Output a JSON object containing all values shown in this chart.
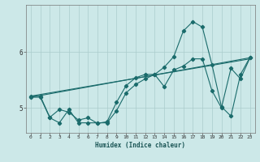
{
  "bg_color": "#cce8e8",
  "grid_color": "#aacccc",
  "line_color": "#1a6b6b",
  "xlabel": "Humidex (Indice chaleur)",
  "xlim": [
    -0.5,
    23.5
  ],
  "ylim": [
    4.55,
    6.85
  ],
  "yticks": [
    5,
    6
  ],
  "xticks": [
    0,
    1,
    2,
    3,
    4,
    5,
    6,
    7,
    8,
    9,
    10,
    11,
    12,
    13,
    14,
    15,
    16,
    17,
    18,
    19,
    20,
    21,
    22,
    23
  ],
  "series1_x": [
    0,
    1,
    2,
    3,
    4,
    5,
    6,
    7,
    8,
    9,
    10,
    11,
    12,
    13,
    14,
    15,
    16,
    17,
    18,
    19,
    20,
    21,
    22,
    23
  ],
  "series1_y": [
    5.19,
    5.19,
    4.82,
    4.73,
    4.97,
    4.73,
    4.73,
    4.73,
    4.73,
    4.95,
    5.27,
    5.42,
    5.52,
    5.6,
    5.38,
    5.68,
    5.75,
    5.88,
    5.88,
    5.31,
    5.0,
    5.71,
    5.52,
    5.9
  ],
  "series2_x": [
    0,
    1,
    2,
    3,
    4,
    5,
    6,
    7,
    8,
    9,
    10,
    11,
    12,
    13,
    14,
    15,
    16,
    17,
    18,
    19,
    20,
    21,
    22,
    23
  ],
  "series2_y": [
    5.21,
    5.21,
    4.83,
    4.97,
    4.92,
    4.78,
    4.82,
    4.72,
    4.75,
    5.1,
    5.4,
    5.54,
    5.6,
    5.6,
    5.73,
    5.92,
    6.38,
    6.55,
    6.45,
    5.78,
    5.02,
    4.85,
    5.6,
    5.91
  ],
  "trend1_x": [
    0,
    23
  ],
  "trend1_y": [
    5.21,
    5.88
  ],
  "trend2_x": [
    0,
    23
  ],
  "trend2_y": [
    5.19,
    5.9
  ]
}
